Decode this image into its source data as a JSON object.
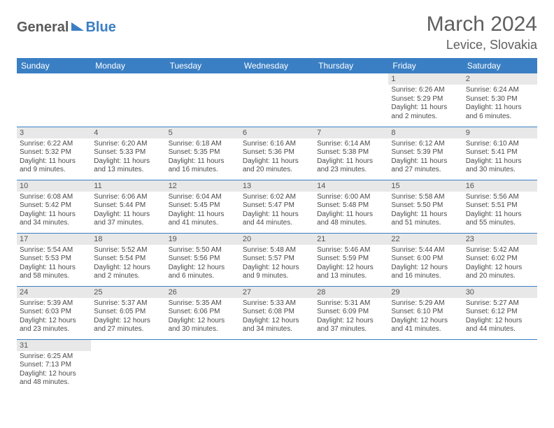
{
  "logo": {
    "text1": "General",
    "text2": "Blue"
  },
  "title": "March 2024",
  "location": "Levice, Slovakia",
  "colors": {
    "header_bg": "#3a7fc4",
    "header_text": "#ffffff",
    "daynum_bg": "#e8e8e8",
    "cell_border": "#3a7fc4",
    "body_text": "#4a4a4a",
    "title_text": "#5f5f5f"
  },
  "day_labels": [
    "Sunday",
    "Monday",
    "Tuesday",
    "Wednesday",
    "Thursday",
    "Friday",
    "Saturday"
  ],
  "weeks": [
    [
      {
        "n": "",
        "sr": "",
        "ss": "",
        "dl": ""
      },
      {
        "n": "",
        "sr": "",
        "ss": "",
        "dl": ""
      },
      {
        "n": "",
        "sr": "",
        "ss": "",
        "dl": ""
      },
      {
        "n": "",
        "sr": "",
        "ss": "",
        "dl": ""
      },
      {
        "n": "",
        "sr": "",
        "ss": "",
        "dl": ""
      },
      {
        "n": "1",
        "sr": "Sunrise: 6:26 AM",
        "ss": "Sunset: 5:29 PM",
        "dl": "Daylight: 11 hours and 2 minutes."
      },
      {
        "n": "2",
        "sr": "Sunrise: 6:24 AM",
        "ss": "Sunset: 5:30 PM",
        "dl": "Daylight: 11 hours and 6 minutes."
      }
    ],
    [
      {
        "n": "3",
        "sr": "Sunrise: 6:22 AM",
        "ss": "Sunset: 5:32 PM",
        "dl": "Daylight: 11 hours and 9 minutes."
      },
      {
        "n": "4",
        "sr": "Sunrise: 6:20 AM",
        "ss": "Sunset: 5:33 PM",
        "dl": "Daylight: 11 hours and 13 minutes."
      },
      {
        "n": "5",
        "sr": "Sunrise: 6:18 AM",
        "ss": "Sunset: 5:35 PM",
        "dl": "Daylight: 11 hours and 16 minutes."
      },
      {
        "n": "6",
        "sr": "Sunrise: 6:16 AM",
        "ss": "Sunset: 5:36 PM",
        "dl": "Daylight: 11 hours and 20 minutes."
      },
      {
        "n": "7",
        "sr": "Sunrise: 6:14 AM",
        "ss": "Sunset: 5:38 PM",
        "dl": "Daylight: 11 hours and 23 minutes."
      },
      {
        "n": "8",
        "sr": "Sunrise: 6:12 AM",
        "ss": "Sunset: 5:39 PM",
        "dl": "Daylight: 11 hours and 27 minutes."
      },
      {
        "n": "9",
        "sr": "Sunrise: 6:10 AM",
        "ss": "Sunset: 5:41 PM",
        "dl": "Daylight: 11 hours and 30 minutes."
      }
    ],
    [
      {
        "n": "10",
        "sr": "Sunrise: 6:08 AM",
        "ss": "Sunset: 5:42 PM",
        "dl": "Daylight: 11 hours and 34 minutes."
      },
      {
        "n": "11",
        "sr": "Sunrise: 6:06 AM",
        "ss": "Sunset: 5:44 PM",
        "dl": "Daylight: 11 hours and 37 minutes."
      },
      {
        "n": "12",
        "sr": "Sunrise: 6:04 AM",
        "ss": "Sunset: 5:45 PM",
        "dl": "Daylight: 11 hours and 41 minutes."
      },
      {
        "n": "13",
        "sr": "Sunrise: 6:02 AM",
        "ss": "Sunset: 5:47 PM",
        "dl": "Daylight: 11 hours and 44 minutes."
      },
      {
        "n": "14",
        "sr": "Sunrise: 6:00 AM",
        "ss": "Sunset: 5:48 PM",
        "dl": "Daylight: 11 hours and 48 minutes."
      },
      {
        "n": "15",
        "sr": "Sunrise: 5:58 AM",
        "ss": "Sunset: 5:50 PM",
        "dl": "Daylight: 11 hours and 51 minutes."
      },
      {
        "n": "16",
        "sr": "Sunrise: 5:56 AM",
        "ss": "Sunset: 5:51 PM",
        "dl": "Daylight: 11 hours and 55 minutes."
      }
    ],
    [
      {
        "n": "17",
        "sr": "Sunrise: 5:54 AM",
        "ss": "Sunset: 5:53 PM",
        "dl": "Daylight: 11 hours and 58 minutes."
      },
      {
        "n": "18",
        "sr": "Sunrise: 5:52 AM",
        "ss": "Sunset: 5:54 PM",
        "dl": "Daylight: 12 hours and 2 minutes."
      },
      {
        "n": "19",
        "sr": "Sunrise: 5:50 AM",
        "ss": "Sunset: 5:56 PM",
        "dl": "Daylight: 12 hours and 6 minutes."
      },
      {
        "n": "20",
        "sr": "Sunrise: 5:48 AM",
        "ss": "Sunset: 5:57 PM",
        "dl": "Daylight: 12 hours and 9 minutes."
      },
      {
        "n": "21",
        "sr": "Sunrise: 5:46 AM",
        "ss": "Sunset: 5:59 PM",
        "dl": "Daylight: 12 hours and 13 minutes."
      },
      {
        "n": "22",
        "sr": "Sunrise: 5:44 AM",
        "ss": "Sunset: 6:00 PM",
        "dl": "Daylight: 12 hours and 16 minutes."
      },
      {
        "n": "23",
        "sr": "Sunrise: 5:42 AM",
        "ss": "Sunset: 6:02 PM",
        "dl": "Daylight: 12 hours and 20 minutes."
      }
    ],
    [
      {
        "n": "24",
        "sr": "Sunrise: 5:39 AM",
        "ss": "Sunset: 6:03 PM",
        "dl": "Daylight: 12 hours and 23 minutes."
      },
      {
        "n": "25",
        "sr": "Sunrise: 5:37 AM",
        "ss": "Sunset: 6:05 PM",
        "dl": "Daylight: 12 hours and 27 minutes."
      },
      {
        "n": "26",
        "sr": "Sunrise: 5:35 AM",
        "ss": "Sunset: 6:06 PM",
        "dl": "Daylight: 12 hours and 30 minutes."
      },
      {
        "n": "27",
        "sr": "Sunrise: 5:33 AM",
        "ss": "Sunset: 6:08 PM",
        "dl": "Daylight: 12 hours and 34 minutes."
      },
      {
        "n": "28",
        "sr": "Sunrise: 5:31 AM",
        "ss": "Sunset: 6:09 PM",
        "dl": "Daylight: 12 hours and 37 minutes."
      },
      {
        "n": "29",
        "sr": "Sunrise: 5:29 AM",
        "ss": "Sunset: 6:10 PM",
        "dl": "Daylight: 12 hours and 41 minutes."
      },
      {
        "n": "30",
        "sr": "Sunrise: 5:27 AM",
        "ss": "Sunset: 6:12 PM",
        "dl": "Daylight: 12 hours and 44 minutes."
      }
    ],
    [
      {
        "n": "31",
        "sr": "Sunrise: 6:25 AM",
        "ss": "Sunset: 7:13 PM",
        "dl": "Daylight: 12 hours and 48 minutes."
      },
      {
        "n": "",
        "sr": "",
        "ss": "",
        "dl": ""
      },
      {
        "n": "",
        "sr": "",
        "ss": "",
        "dl": ""
      },
      {
        "n": "",
        "sr": "",
        "ss": "",
        "dl": ""
      },
      {
        "n": "",
        "sr": "",
        "ss": "",
        "dl": ""
      },
      {
        "n": "",
        "sr": "",
        "ss": "",
        "dl": ""
      },
      {
        "n": "",
        "sr": "",
        "ss": "",
        "dl": ""
      }
    ]
  ]
}
